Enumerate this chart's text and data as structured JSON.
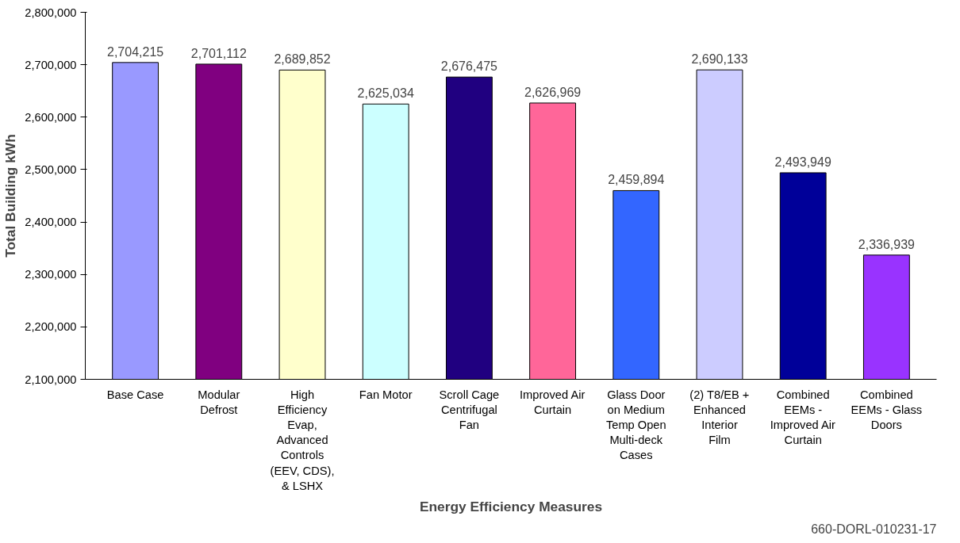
{
  "chart_data": {
    "type": "bar",
    "xlabel": "Energy Efficiency Measures",
    "ylabel": "Total Building kWh",
    "categories": [
      "Base Case",
      "Modular Defrost",
      "High Efficiency Evap, Advanced Controls (EEV, CDS), & LSHX",
      "Fan Motor",
      "Scroll Cage Centrifugal Fan",
      "Improved Air Curtain",
      "Glass Door on Medium Temp Open Multi-deck Cases",
      "(2) T8/EB + Enhanced Interior Film",
      "Combined EEMs - Improved Air Curtain",
      "Combined EEMs - Glass Doors"
    ],
    "values": [
      2704215,
      2701112,
      2689852,
      2625034,
      2676475,
      2626969,
      2459894,
      2690133,
      2493949,
      2336939
    ],
    "colors": [
      "#9999ff",
      "#800080",
      "#ffffcc",
      "#ccffff",
      "#200080",
      "#ff6699",
      "#3366ff",
      "#ccccff",
      "#000099",
      "#9933ff"
    ],
    "value_labels": [
      "2,704,215",
      "2,701,112",
      "2,689,852",
      "2,625,034",
      "2,676,475",
      "2,626,969",
      "2,459,894",
      "2,690,133",
      "2,493,949",
      "2,336,939"
    ],
    "grid": false,
    "ylim": [
      2100000,
      2800000
    ],
    "yticks": [
      {
        "value": 2100000,
        "label": "2,100,000"
      },
      {
        "value": 2200000,
        "label": "2,200,000"
      },
      {
        "value": 2300000,
        "label": "2,300,000"
      },
      {
        "value": 2400000,
        "label": "2,400,000"
      },
      {
        "value": 2500000,
        "label": "2,500,000"
      },
      {
        "value": 2600000,
        "label": "2,600,000"
      },
      {
        "value": 2700000,
        "label": "2,700,000"
      },
      {
        "value": 2800000,
        "label": "2,800,000"
      }
    ],
    "annotations": [
      "660-DORL-010231-17"
    ]
  }
}
